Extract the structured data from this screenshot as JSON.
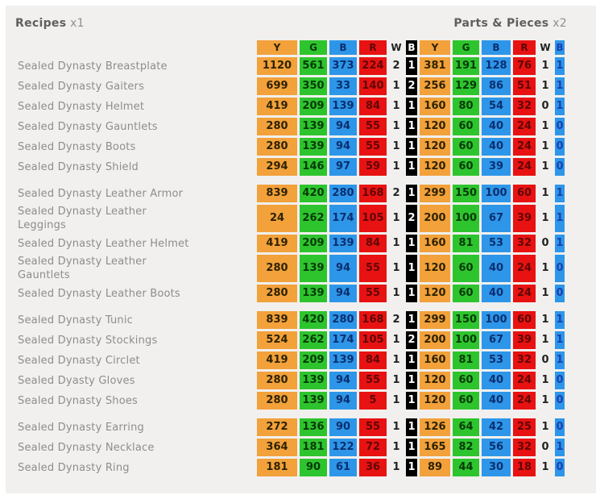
{
  "titles": {
    "left": {
      "label": "Recipes",
      "multiplier": "x1"
    },
    "right": {
      "label": "Parts & Pieces",
      "multiplier": "x2"
    }
  },
  "colors": {
    "yellow": "#F2A13B",
    "green": "#2EC42E",
    "blue": "#2E96E8",
    "red": "#E81212",
    "black": "#000000",
    "background": "#F1F0EE",
    "name_text": "#8D8D8D"
  },
  "table": {
    "columns": [
      {
        "label": "Y",
        "style": "yellow"
      },
      {
        "label": "G",
        "style": "green"
      },
      {
        "label": "B",
        "style": "blue"
      },
      {
        "label": "R",
        "style": "red"
      },
      {
        "label": "W",
        "style": "white"
      },
      {
        "label": "B",
        "style": "black"
      },
      {
        "label": "Y",
        "style": "yellow"
      },
      {
        "label": "G",
        "style": "green"
      },
      {
        "label": "B",
        "style": "blue"
      },
      {
        "label": "R",
        "style": "red"
      },
      {
        "label": "W",
        "style": "white"
      },
      {
        "label": "B",
        "style": "blue2"
      }
    ],
    "groups": [
      {
        "rows": [
          {
            "name": "Sealed Dynasty Breastplate",
            "values": [
              1120,
              561,
              373,
              224,
              2,
              1,
              381,
              191,
              128,
              76,
              1,
              1
            ]
          },
          {
            "name": "Sealed Dynasty Gaiters",
            "values": [
              699,
              350,
              33,
              140,
              1,
              2,
              256,
              129,
              86,
              51,
              1,
              1
            ]
          },
          {
            "name": "Sealed Dynasty Helmet",
            "values": [
              419,
              209,
              139,
              84,
              1,
              1,
              160,
              80,
              54,
              32,
              0,
              1
            ]
          },
          {
            "name": "Sealed Dynasty Gauntlets",
            "values": [
              280,
              139,
              94,
              55,
              1,
              1,
              120,
              60,
              40,
              24,
              1,
              0
            ]
          },
          {
            "name": "Sealed Dynasty Boots",
            "values": [
              280,
              139,
              94,
              55,
              1,
              1,
              120,
              60,
              40,
              24,
              1,
              0
            ]
          },
          {
            "name": "Sealed Dynasty Shield",
            "values": [
              294,
              146,
              97,
              59,
              1,
              1,
              120,
              60,
              39,
              24,
              1,
              0
            ]
          }
        ]
      },
      {
        "rows": [
          {
            "name": "Sealed Dynasty Leather Armor",
            "values": [
              839,
              420,
              280,
              168,
              2,
              1,
              299,
              150,
              100,
              60,
              1,
              1
            ]
          },
          {
            "name": "Sealed Dynasty Leather\nLeggings",
            "values": [
              24,
              262,
              174,
              105,
              1,
              2,
              200,
              100,
              67,
              39,
              1,
              1
            ]
          },
          {
            "name": "Sealed Dynasty Leather Helmet",
            "values": [
              419,
              209,
              139,
              84,
              1,
              1,
              160,
              81,
              53,
              32,
              0,
              1
            ]
          },
          {
            "name": "Sealed Dynasty Leather\nGauntlets",
            "values": [
              280,
              139,
              94,
              55,
              1,
              1,
              120,
              60,
              40,
              24,
              1,
              0
            ]
          },
          {
            "name": "Sealed Dynasty Leather Boots",
            "values": [
              280,
              139,
              94,
              55,
              1,
              1,
              120,
              60,
              40,
              24,
              1,
              0
            ]
          }
        ]
      },
      {
        "rows": [
          {
            "name": "Sealed Dynasty Tunic",
            "values": [
              839,
              420,
              280,
              168,
              2,
              1,
              299,
              150,
              100,
              60,
              1,
              1
            ]
          },
          {
            "name": "Sealed Dynasty Stockings",
            "values": [
              524,
              262,
              174,
              105,
              1,
              2,
              200,
              100,
              67,
              39,
              1,
              1
            ]
          },
          {
            "name": "Sealed Dynasty Circlet",
            "values": [
              419,
              209,
              139,
              84,
              1,
              1,
              160,
              81,
              53,
              32,
              0,
              1
            ]
          },
          {
            "name": "Sealed Dyasty Gloves",
            "values": [
              280,
              139,
              94,
              55,
              1,
              1,
              120,
              60,
              40,
              24,
              1,
              0
            ]
          },
          {
            "name": "Sealed Dynasty Shoes",
            "values": [
              280,
              139,
              94,
              5,
              1,
              1,
              120,
              60,
              40,
              24,
              1,
              0
            ]
          }
        ]
      },
      {
        "rows": [
          {
            "name": "Sealed Dynasty Earring",
            "values": [
              272,
              136,
              90,
              55,
              1,
              1,
              126,
              64,
              42,
              25,
              1,
              0
            ]
          },
          {
            "name": "Sealed Dynasty Necklace",
            "values": [
              364,
              181,
              122,
              72,
              1,
              1,
              165,
              82,
              56,
              32,
              0,
              1
            ]
          },
          {
            "name": "Sealed Dynasty Ring",
            "values": [
              181,
              90,
              61,
              36,
              1,
              1,
              89,
              44,
              30,
              18,
              1,
              0
            ]
          }
        ]
      }
    ]
  }
}
